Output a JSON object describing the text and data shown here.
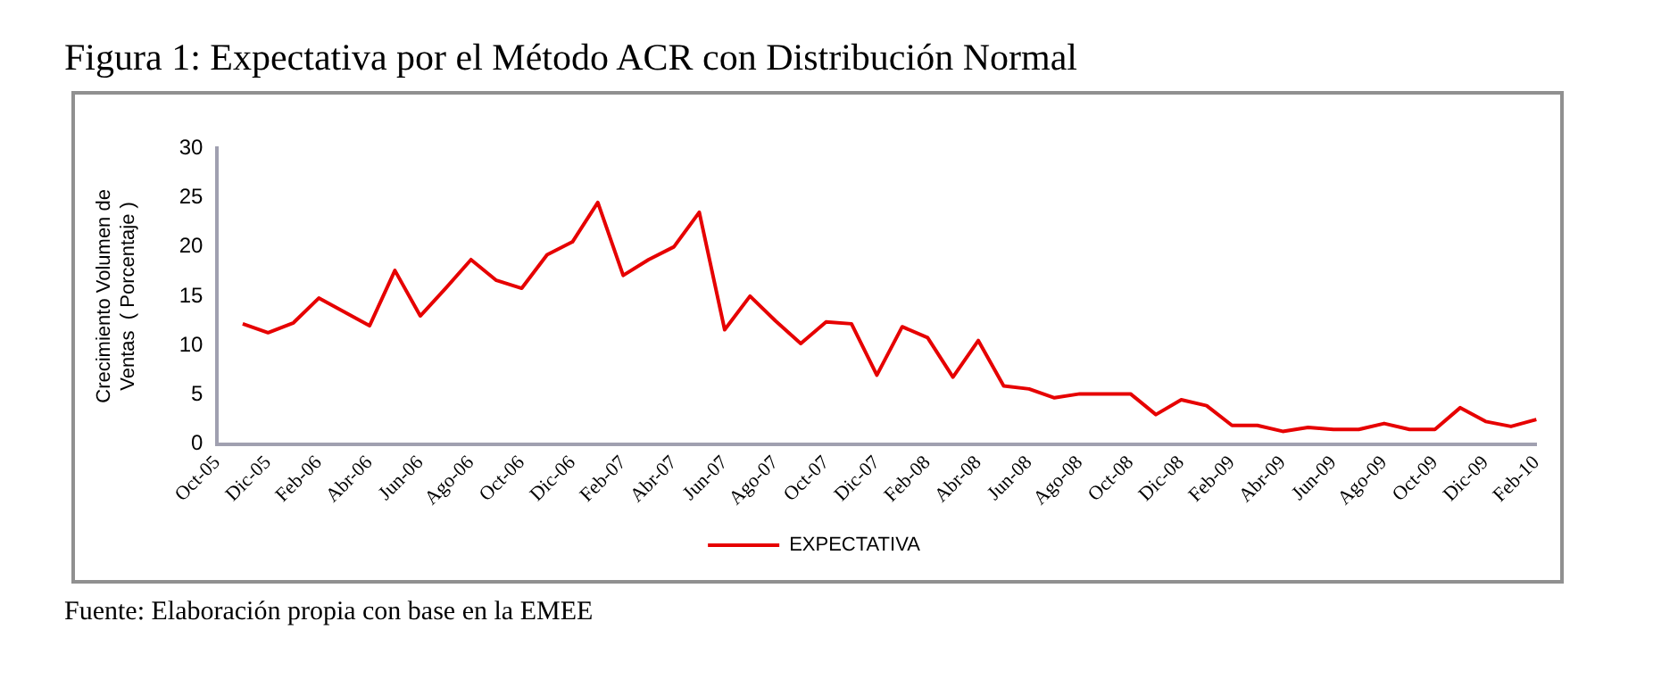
{
  "chart_data": {
    "type": "line",
    "title": "Figura 1: Expectativa por el Método ACR con Distribución Normal",
    "ylabel": "Crecimiento Volumen de\nVentas  ( Porcentaje )",
    "categories": [
      "Oct-05",
      null,
      "Dic-05",
      null,
      "Feb-06",
      null,
      "Abr-06",
      null,
      "Jun-06",
      null,
      "Ago-06",
      null,
      "Oct-06",
      null,
      "Dic-06",
      null,
      "Feb-07",
      null,
      "Abr-07",
      null,
      "Jun-07",
      null,
      "Ago-07",
      null,
      "Oct-07",
      null,
      "Dic-07",
      null,
      "Feb-08",
      null,
      "Abr-08",
      null,
      "Jun-08",
      null,
      "Ago-08",
      null,
      "Oct-08",
      null,
      "Dic-08",
      null,
      "Feb-09",
      null,
      "Abr-09",
      null,
      "Jun-09",
      null,
      "Ago-09",
      null,
      "Oct-09",
      null,
      "Dic-09",
      null,
      "Feb-10"
    ],
    "series": [
      {
        "name": "EXPECTATIVA",
        "color": "#e60000",
        "values": [
          null,
          12.2,
          11.3,
          12.3,
          14.8,
          13.4,
          12.0,
          17.6,
          13.0,
          15.8,
          18.7,
          16.6,
          15.8,
          19.2,
          20.5,
          24.5,
          17.1,
          18.7,
          20.0,
          23.5,
          11.6,
          15.0,
          12.5,
          10.2,
          12.4,
          12.2,
          7.0,
          11.9,
          10.8,
          6.8,
          10.5,
          5.9,
          5.6,
          4.7,
          5.1,
          5.1,
          5.1,
          3.0,
          4.5,
          3.9,
          1.9,
          1.9,
          1.3,
          1.7,
          1.5,
          1.5,
          2.1,
          1.5,
          1.5,
          3.7,
          2.3,
          1.8,
          2.5
        ]
      }
    ],
    "ylim": [
      0,
      30
    ],
    "yticks": [
      0,
      5,
      10,
      15,
      20,
      25,
      30
    ],
    "grid": false,
    "legend": "bottom",
    "marker": "none",
    "line_style": "solid",
    "annotations": [
      "Fuente: Elaboración propia con base en la EMEE"
    ]
  }
}
